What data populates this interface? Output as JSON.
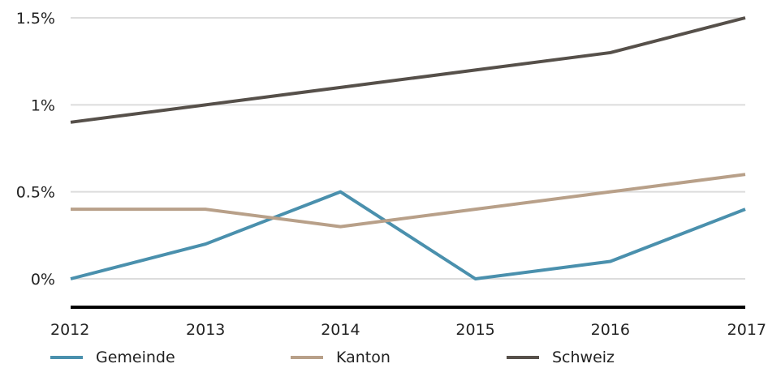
{
  "chart_data": {
    "type": "line",
    "title": "",
    "xlabel": "",
    "ylabel": "",
    "x": [
      "2012",
      "2013",
      "2014",
      "2015",
      "2016",
      "2017"
    ],
    "ylim": [
      -0.17,
      1.5
    ],
    "yticks": [
      0,
      0.5,
      1,
      1.5
    ],
    "ytick_labels": [
      "0%",
      "0.5%",
      "1%",
      "1.5%"
    ],
    "grid": true,
    "legend_position": "bottom",
    "series": [
      {
        "name": "Gemeinde",
        "color": "#4a90ad",
        "values": [
          0.0,
          0.2,
          0.5,
          0.0,
          0.1,
          0.4
        ]
      },
      {
        "name": "Kanton",
        "color": "#b8a089",
        "values": [
          0.4,
          0.4,
          0.3,
          0.4,
          0.5,
          0.6
        ]
      },
      {
        "name": "Schweiz",
        "color": "#56504a",
        "values": [
          0.9,
          1.0,
          1.1,
          1.2,
          1.3,
          1.5
        ]
      }
    ]
  }
}
